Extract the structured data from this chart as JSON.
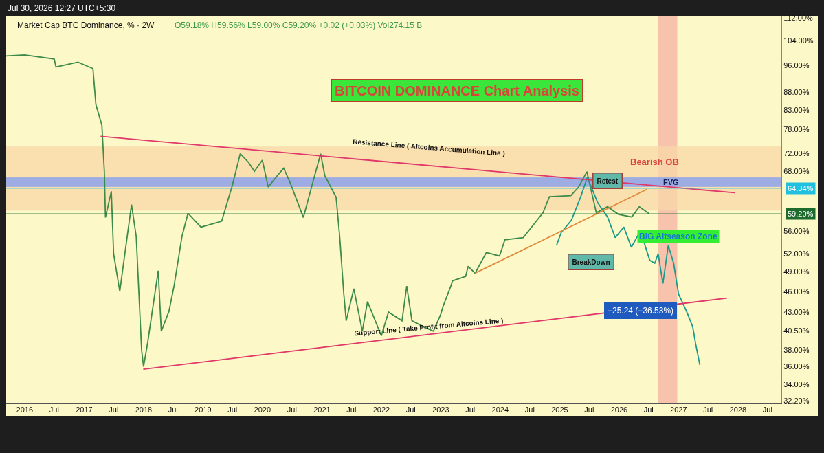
{
  "chart_data": {
    "type": "line",
    "title": "BITCOIN DOMINANCE Chart Analysis",
    "annotations": [
      "Jul 30, 2026 12:27 UTC+5:30",
      "Market Cap BTC Dominance, % · 2W",
      "O59.18% H59.56% L59.00% C59.20% +0.02 (+0.03%) Vol274.15 B",
      "Resistance Line ( Altcoins Accumulation Line )",
      "Support Line ( Take Profit from Altcoins Line )",
      {
        "text": "Retest",
        "x": "2025-10-20",
        "y": 66
      },
      "BreakDown",
      "BIG Altseason Zone"
    ],
    "series": [
      {
        "color": "#3d8b4a",
        "x": [
          "2015-09-10",
          "2016-01-01",
          "2016-07-01",
          "2016-07-12",
          "2016-11-24",
          "2017-02-24",
          "2017-03-14",
          "2017-04-20",
          "2017-05-05",
          "2017-05-12",
          "2017-06-17",
          "2017-07-01",
          "2017-08-08",
          "2017-09-13",
          "2017-10-19",
          "2017-11-17",
          "2017-12-20",
          "2018-01-01",
          "2018-01-26",
          "2018-04-01",
          "2018-04-20",
          "2018-06-06",
          "2018-07-08",
          "2018-08-25",
          "2018-10-01",
          "2018-12-20",
          "2019-04-26",
          "2019-07-01",
          "2019-08-18",
          "2019-10-08",
          "2019-11-13",
          "2020-01-01",
          "2020-02-06",
          "2020-04-01",
          "2020-05-11",
          "2020-06-20",
          "2020-09-09",
          "2020-10-30",
          "2020-12-24",
          "2021-01-19",
          "2021-03-29",
          "2021-04-20",
          "2021-05-15",
          "2021-05-30",
          "2021-07-16",
          "2021-09-06",
          "2021-10-08",
          "2022-01-01",
          "2022-02-14",
          "2022-05-08",
          "2022-06-06",
          "2022-07-08",
          "2022-09-27",
          "2022-11-17",
          "2023-01-01",
          "2023-01-15",
          "2023-03-04",
          "2023-03-14",
          "2023-06-03",
          "2023-06-18",
          "2023-07-31",
          "2023-10-08",
          "2023-12-28",
          "2024-01-30",
          "2024-05-22",
          "2024-09-20",
          "2024-10-30",
          "2025-03-10",
          "2025-04-27",
          "2025-06-17",
          "2025-08-14",
          "2025-10-22",
          "2025-12-28",
          "2026-03-20",
          "2026-05-05",
          "2026-07-05"
        ],
        "values": [
          99,
          99.3,
          98,
          95.5,
          97,
          95,
          84.5,
          79,
          68,
          58.5,
          63.7,
          52,
          46,
          53,
          61,
          55,
          38,
          36,
          38.9,
          49.2,
          40.4,
          43.1,
          46.9,
          55,
          59.3,
          56.7,
          57.8,
          65,
          72,
          70,
          68,
          70.5,
          64.6,
          67,
          68.7,
          65.5,
          58.5,
          64.7,
          72,
          67,
          62.5,
          55,
          45.7,
          41.8,
          46.4,
          40.4,
          44.5,
          39.8,
          43,
          41.8,
          46.8,
          41.8,
          40.9,
          40.4,
          42.7,
          43.8,
          46.8,
          47.6,
          48.3,
          49.9,
          48.8,
          52.2,
          51.6,
          54.4,
          54.8,
          59.4,
          62.6,
          62.8,
          64.6,
          67.9,
          59.4,
          60.6,
          59.1,
          58.6,
          60.6,
          59.2
        ]
      },
      {
        "color": "#1a9a8a",
        "x": [
          "2024-12-12",
          "2025-01-10",
          "2025-03-14",
          "2025-05-08",
          "2025-06-20",
          "2025-08-22",
          "2025-10-22",
          "2025-12-08",
          "2026-01-30",
          "2026-03-17",
          "2026-05-12",
          "2026-07-08",
          "2026-08-08",
          "2026-08-29",
          "2026-09-27",
          "2026-10-30",
          "2026-12-02",
          "2027-01-01",
          "2027-02-21",
          "2027-03-29",
          "2027-04-16",
          "2027-05-12"
        ],
        "values": [
          53.4,
          55.7,
          58,
          62.4,
          66.7,
          61.4,
          58.6,
          54.8,
          56.7,
          53.1,
          56,
          50.9,
          50.4,
          52.0,
          47.2,
          53.4,
          50.4,
          45.6,
          43.0,
          41.0,
          38.8,
          36.2
        ]
      },
      {
        "color": "#e0386a",
        "x": [
          "2017-04-12",
          "2027-12-12"
        ],
        "values": [
          76.2,
          63.4
        ]
      },
      {
        "color": "#e0386a",
        "x": [
          "2017-12-30",
          "2027-10-26"
        ],
        "values": [
          35.7,
          45.0
        ]
      },
      {
        "color": "#e08a3a",
        "x": [
          "2023-07-31",
          "2026-06-20"
        ],
        "values": [
          48.8,
          64.1
        ]
      }
    ],
    "bands": [
      {
        "axis": "y",
        "from": 59.9,
        "to": 73.7,
        "label": "Bearish OB",
        "color": "#f9d9a8"
      },
      {
        "axis": "y",
        "from": 64.7,
        "to": 66.6,
        "label": "FVG",
        "color": "#7f9cf5"
      },
      {
        "axis": "x",
        "from": "2026-08-29",
        "to": "2026-12-24",
        "label": "−25.24 (−36.53%)",
        "color": "#f4a09a"
      }
    ],
    "ref_lines": [
      {
        "axis": "y",
        "value": 64.34,
        "label": "64.34%",
        "color": "#22c0e0"
      },
      {
        "axis": "y",
        "value": 59.2,
        "label": "59.20%",
        "color": "#1e6b2e"
      }
    ],
    "log": true,
    "xlim": [
      "2015-09-10",
      "2028-09-24"
    ],
    "xticks": [
      {
        "value": "2016-01-01",
        "label": "2016"
      },
      {
        "value": "2016-07-01",
        "label": "Jul"
      },
      {
        "value": "2017-01-01",
        "label": "2017"
      },
      {
        "value": "2017-07-01",
        "label": "Jul"
      },
      {
        "value": "2018-01-01",
        "label": "2018"
      },
      {
        "value": "2018-07-01",
        "label": "Jul"
      },
      {
        "value": "2019-01-01",
        "label": "2019"
      },
      {
        "value": "2019-07-01",
        "label": "Jul"
      },
      {
        "value": "2020-01-01",
        "label": "2020"
      },
      {
        "value": "2020-07-01",
        "label": "Jul"
      },
      {
        "value": "2021-01-01",
        "label": "2021"
      },
      {
        "value": "2021-07-01",
        "label": "Jul"
      },
      {
        "value": "2022-01-01",
        "label": "2022"
      },
      {
        "value": "2022-07-01",
        "label": "Jul"
      },
      {
        "value": "2023-01-01",
        "label": "2023"
      },
      {
        "value": "2023-07-01",
        "label": "Jul"
      },
      {
        "value": "2024-01-01",
        "label": "2024"
      },
      {
        "value": "2024-07-01",
        "label": "Jul"
      },
      {
        "value": "2025-01-01",
        "label": "2025"
      },
      {
        "value": "2025-07-01",
        "label": "Jul"
      },
      {
        "value": "2026-01-01",
        "label": "2026"
      },
      {
        "value": "2026-07-01",
        "label": "Jul"
      },
      {
        "value": "2027-01-01",
        "label": "2027"
      },
      {
        "value": "2027-07-01",
        "label": "Jul"
      },
      {
        "value": "2028-01-01",
        "label": "2028"
      },
      {
        "value": "2028-07-01",
        "label": "Jul"
      }
    ],
    "ylim": [
      32,
      112.8
    ],
    "yticks": [
      {
        "value": 32.2,
        "label": "32.20%"
      },
      {
        "value": 34,
        "label": "34.00%"
      },
      {
        "value": 36,
        "label": "36.00%"
      },
      {
        "value": 38,
        "label": "38.00%"
      },
      {
        "value": 40.5,
        "label": "40.50%"
      },
      {
        "value": 43,
        "label": "43.00%"
      },
      {
        "value": 46,
        "label": "46.00%"
      },
      {
        "value": 49,
        "label": "49.00%"
      },
      {
        "value": 52,
        "label": "52.00%"
      },
      {
        "value": 56,
        "label": "56.00%"
      },
      {
        "value": 68,
        "label": "68.00%"
      },
      {
        "value": 72,
        "label": "72.00%"
      },
      {
        "value": 78,
        "label": "78.00%"
      },
      {
        "value": 83,
        "label": "83.00%"
      },
      {
        "value": 88,
        "label": "88.00%"
      },
      {
        "value": 96,
        "label": "96.00%"
      },
      {
        "value": 104,
        "label": "104.00%"
      },
      {
        "value": 112,
        "label": "112.00%"
      }
    ],
    "grid": false,
    "marker": "none",
    "line_style": "solid"
  }
}
